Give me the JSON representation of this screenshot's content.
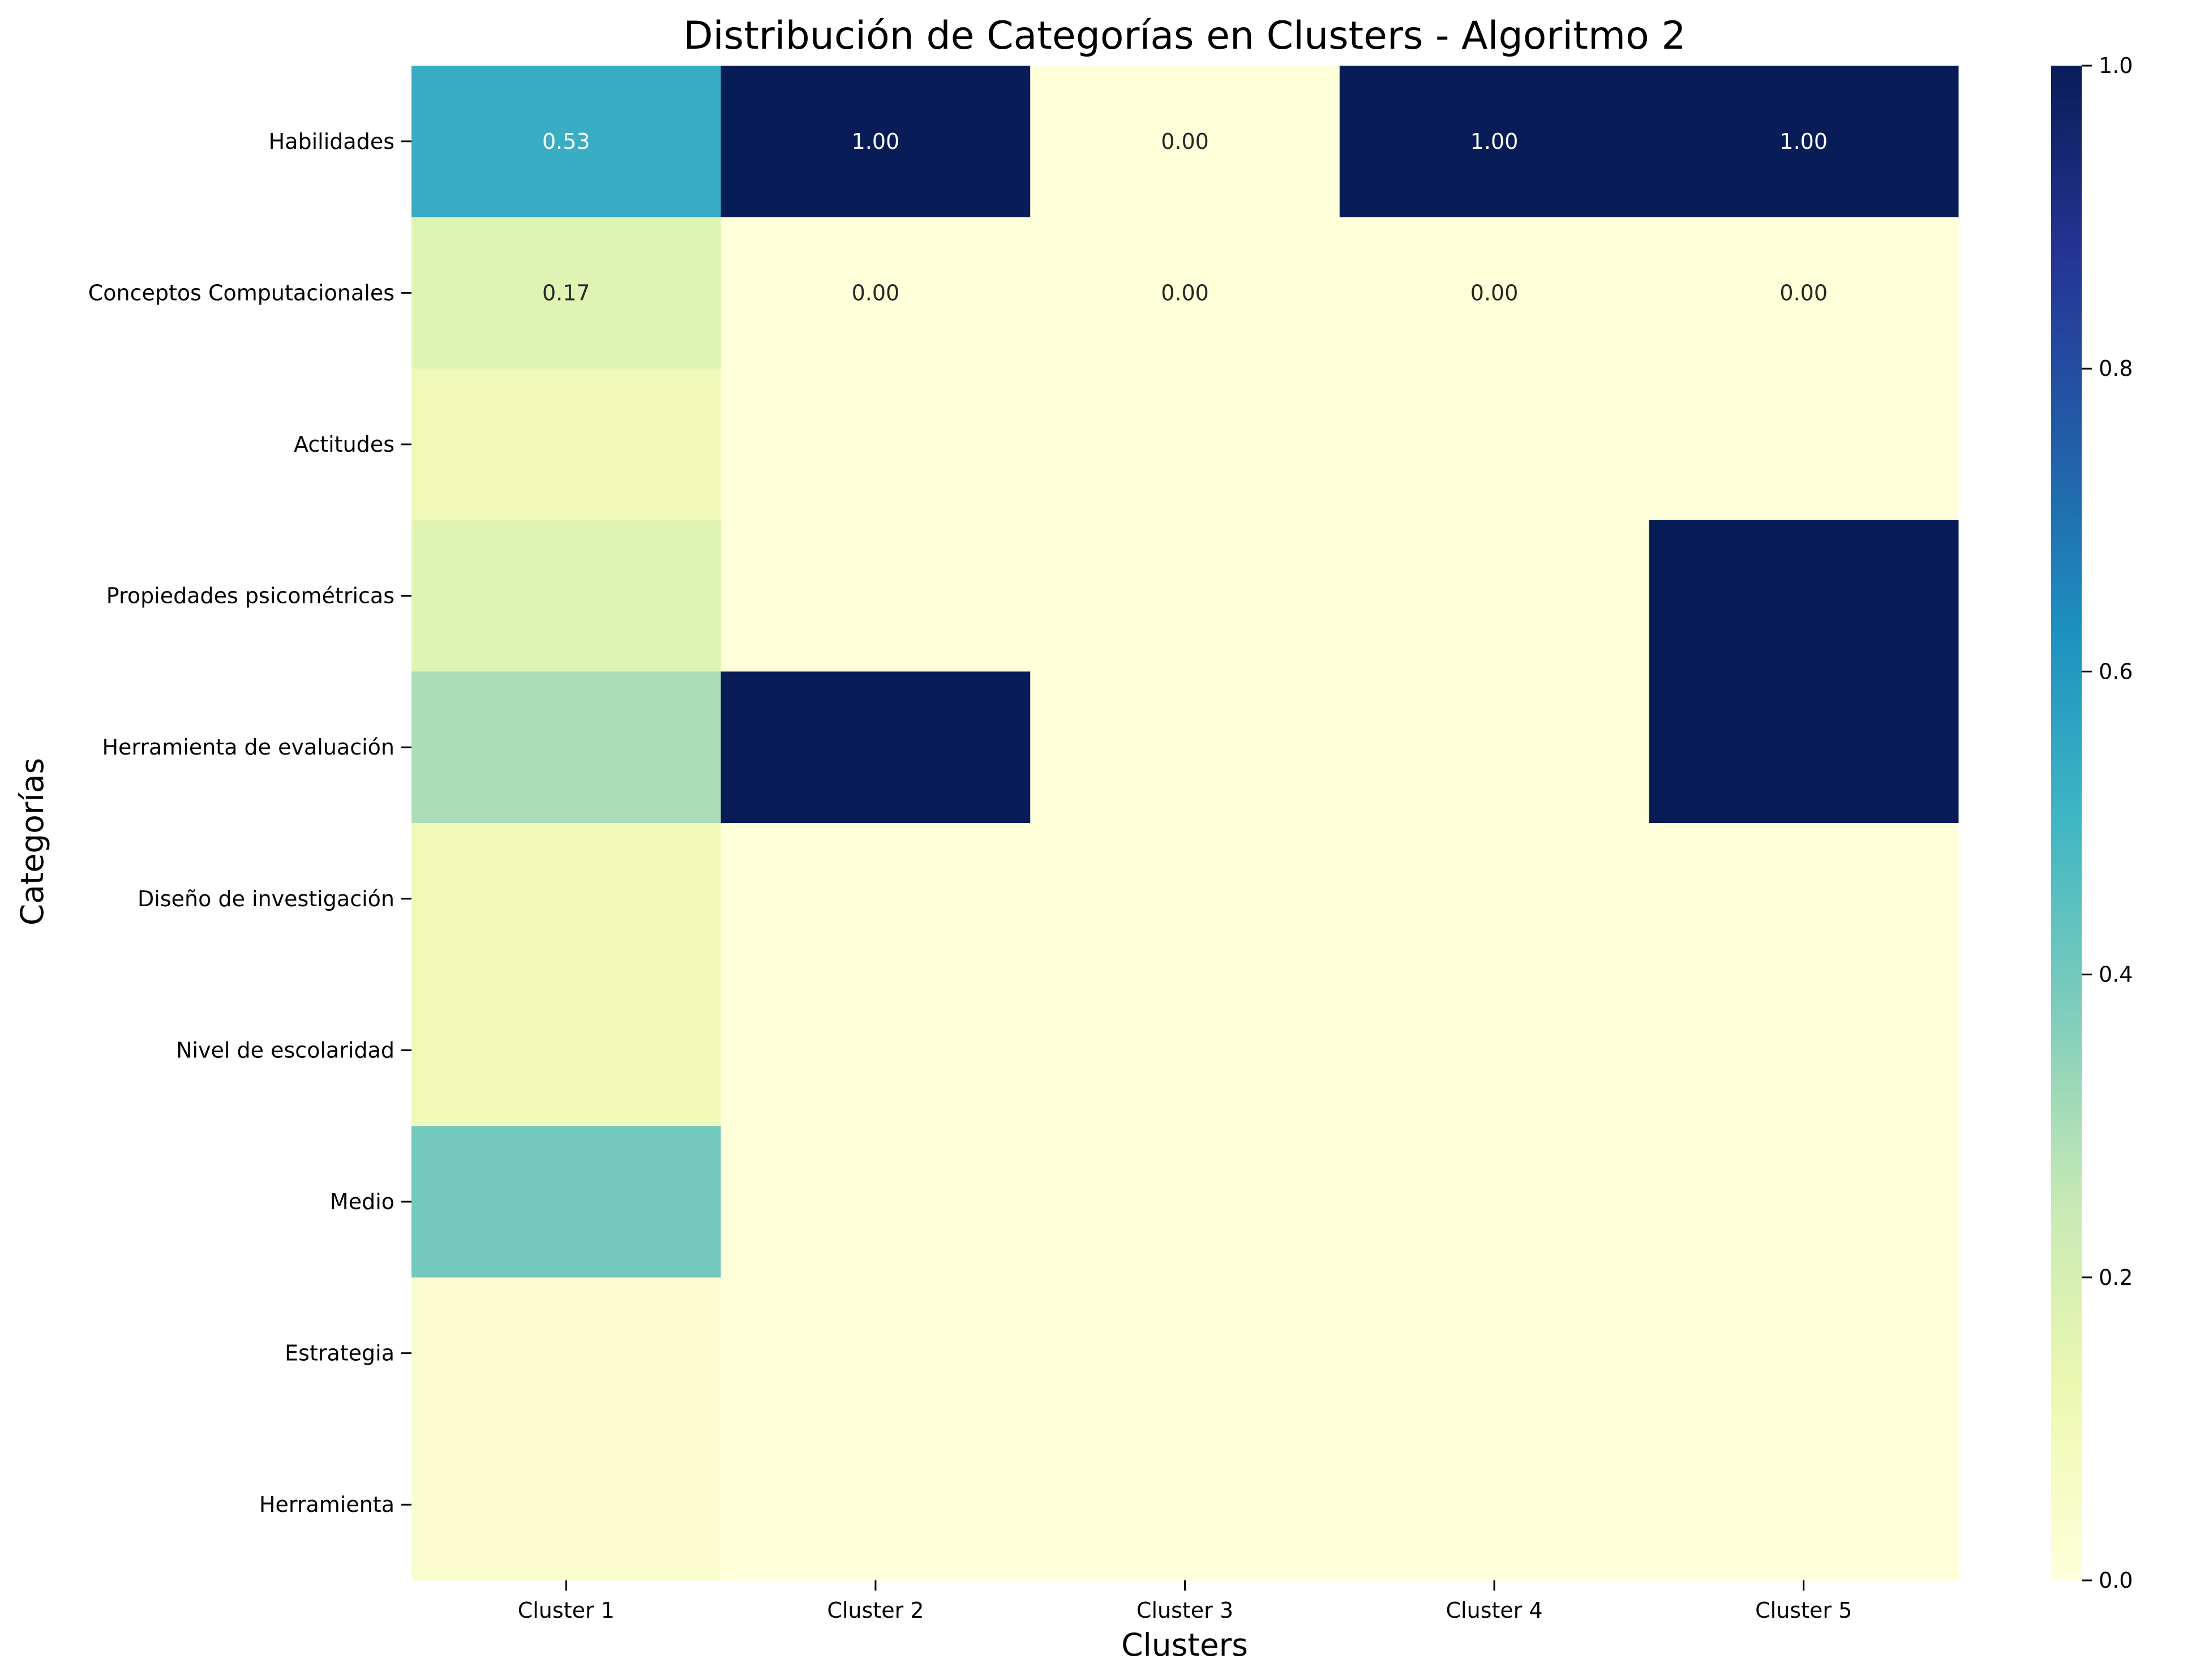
{
  "chart_data": {
    "type": "heatmap",
    "title": "Distribución de Categorías en Clusters - Algoritmo 2",
    "xlabel": "Clusters",
    "ylabel": "Categorías",
    "x_categories": [
      "Cluster 1",
      "Cluster 2",
      "Cluster 3",
      "Cluster 4",
      "Cluster 5"
    ],
    "y_categories": [
      "Habilidades",
      "Conceptos Computacionales",
      "Actitudes",
      "Propiedades psicométricas",
      "Herramienta de evaluación",
      "Diseño de investigación",
      "Nivel de escolaridad",
      "Medio",
      "Estrategia",
      "Herramienta"
    ],
    "values": [
      [
        0.53,
        1.0,
        0.0,
        1.0,
        1.0
      ],
      [
        0.17,
        0.0,
        0.0,
        0.0,
        0.0
      ],
      [
        0.1,
        0.0,
        0.0,
        0.0,
        0.0
      ],
      [
        0.17,
        0.0,
        0.0,
        0.0,
        1.0
      ],
      [
        0.3,
        1.0,
        0.0,
        0.0,
        1.0
      ],
      [
        0.1,
        0.0,
        0.0,
        0.0,
        0.0
      ],
      [
        0.1,
        0.0,
        0.0,
        0.0,
        0.0
      ],
      [
        0.4,
        0.0,
        0.0,
        0.0,
        0.0
      ],
      [
        0.03,
        0.0,
        0.0,
        0.0,
        0.0
      ],
      [
        0.03,
        0.0,
        0.0,
        0.0,
        0.0
      ]
    ],
    "annotations": [
      [
        "0.53",
        "1.00",
        "0.00",
        "1.00",
        "1.00"
      ],
      [
        "0.17",
        "0.00",
        "0.00",
        "0.00",
        "0.00"
      ]
    ],
    "colormap": "YlGnBu",
    "vmin": 0.0,
    "vmax": 1.0,
    "colorbar_ticks": [
      "0.0",
      "0.2",
      "0.4",
      "0.6",
      "0.8",
      "1.0"
    ],
    "colorbar_tick_values": [
      0.0,
      0.2,
      0.4,
      0.6,
      0.8,
      1.0
    ],
    "grid": false,
    "legend": "colorbar-right"
  }
}
